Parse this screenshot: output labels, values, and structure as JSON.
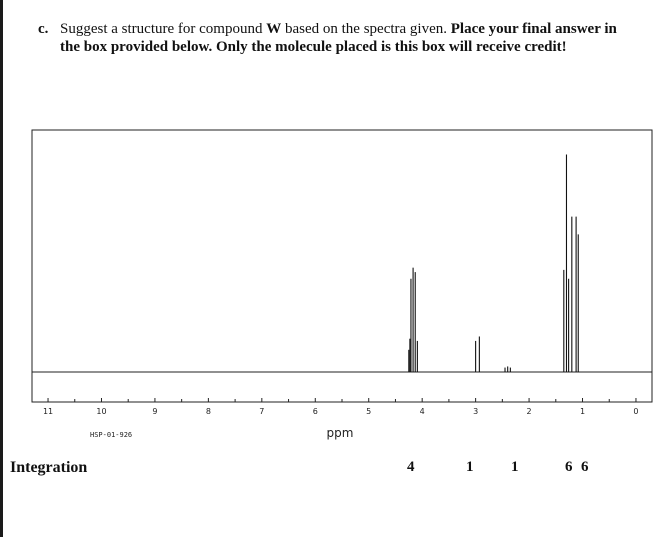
{
  "question": {
    "label": "c.",
    "text_plain": "Suggest a structure for compound ",
    "compound": "W",
    "text_plain2": " based on the spectra given. ",
    "text_bold": "Place your final answer in the box provided below. Only the molecule placed is this box will receive credit!"
  },
  "chart_data": {
    "type": "line",
    "title": "",
    "xlabel": "ppm",
    "ylabel": "",
    "xlim": [
      11.3,
      -0.3
    ],
    "ylim": [
      0,
      1
    ],
    "reversed_x": true,
    "grid": false,
    "source_label": "HSP-01-926",
    "x_ticks": [
      "11",
      "10",
      "9",
      "8",
      "7",
      "6",
      "5",
      "4",
      "3",
      "2",
      "1",
      "0"
    ],
    "x_tick_values": [
      11,
      10,
      9,
      8,
      7,
      6,
      5,
      4,
      3,
      2,
      1,
      0
    ],
    "peaks": [
      {
        "x": 4.25,
        "y": 0.1
      },
      {
        "x": 4.23,
        "y": 0.15
      },
      {
        "x": 4.21,
        "y": 0.42
      },
      {
        "x": 4.17,
        "y": 0.47
      },
      {
        "x": 4.13,
        "y": 0.45
      },
      {
        "x": 4.09,
        "y": 0.14
      },
      {
        "x": 3.0,
        "y": 0.14
      },
      {
        "x": 2.93,
        "y": 0.16
      },
      {
        "x": 2.45,
        "y": 0.02
      },
      {
        "x": 2.4,
        "y": 0.025
      },
      {
        "x": 2.35,
        "y": 0.02
      },
      {
        "x": 1.35,
        "y": 0.46
      },
      {
        "x": 1.3,
        "y": 0.98
      },
      {
        "x": 1.26,
        "y": 0.42
      },
      {
        "x": 1.2,
        "y": 0.7
      },
      {
        "x": 1.12,
        "y": 0.7
      },
      {
        "x": 1.08,
        "y": 0.62
      }
    ]
  },
  "integration": {
    "label": "Integration",
    "values": [
      "4",
      "1",
      "1",
      "6",
      "6"
    ]
  }
}
